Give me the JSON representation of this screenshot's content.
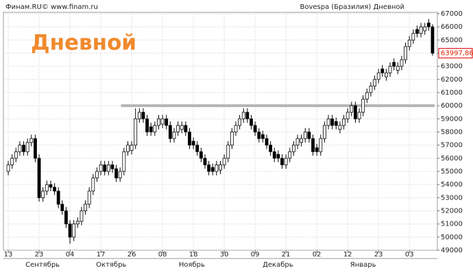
{
  "chart_data": {
    "type": "candlestick",
    "source": "Финам.RU©  www.finam.ru",
    "title": "Bovespa (Бразилия) Дневной",
    "overlay_title": "Дневной",
    "xlim": [
      -1.25,
      111.25
    ],
    "xticks": [
      {
        "value": 0,
        "label": "13"
      },
      {
        "value": 8,
        "label": "23"
      },
      {
        "value": 16,
        "label": "04"
      },
      {
        "value": 24,
        "label": "17"
      },
      {
        "value": 32,
        "label": "26"
      },
      {
        "value": 40,
        "label": "08"
      },
      {
        "value": 48,
        "label": "18"
      },
      {
        "value": 56,
        "label": "30"
      },
      {
        "value": 64,
        "label": "09"
      },
      {
        "value": 72,
        "label": "21"
      },
      {
        "value": 80,
        "label": "02"
      },
      {
        "value": 88,
        "label": "12"
      },
      {
        "value": 96,
        "label": "23"
      },
      {
        "value": 104,
        "label": "03"
      }
    ],
    "month_labels": [
      {
        "value": 8.9,
        "label": "Сентябрь"
      },
      {
        "value": 26.7,
        "label": "Октябрь"
      },
      {
        "value": 47.6,
        "label": "Ноябрь"
      },
      {
        "value": 69.9,
        "label": "Декабрь"
      },
      {
        "value": 92,
        "label": "Январь"
      }
    ],
    "ylim": [
      49000,
      67000
    ],
    "yticks": [
      49000,
      50000,
      51000,
      52000,
      53000,
      54000,
      55000,
      56000,
      57000,
      58000,
      59000,
      60000,
      61000,
      62000,
      63000,
      64000,
      65000,
      66000,
      67000
    ],
    "grid": true,
    "up_color": "#ffffff",
    "down_color": "#000000",
    "resistance_line": {
      "value": 60000,
      "start": 31,
      "end": 110,
      "color": "#b4b4b4"
    },
    "last_price_label": "63997,86",
    "open": [
      55000,
      55500,
      56000,
      56500,
      57000,
      56500,
      57200,
      57500,
      56000,
      53000,
      53500,
      54000,
      53800,
      53500,
      52500,
      52000,
      51000,
      50000,
      51000,
      51200,
      52000,
      52500,
      53500,
      54500,
      55000,
      55500,
      55000,
      55500,
      55200,
      54500,
      55000,
      56500,
      56600,
      57000,
      59000,
      59500,
      59000,
      58400,
      58000,
      58500,
      58600,
      59000,
      58500,
      57500,
      58000,
      58200,
      58500,
      58000,
      57300,
      57000,
      56500,
      56000,
      55500,
      55300,
      55000,
      55100,
      55500,
      56000,
      57000,
      58000,
      58500,
      59000,
      59500,
      59000,
      58500,
      58000,
      57800,
      57500,
      57000,
      56500,
      56300,
      56000,
      55500,
      56000,
      56500,
      57000,
      57200,
      57500,
      58000,
      57500,
      56800,
      56500,
      57500,
      58500,
      59000,
      58800,
      58200,
      58500,
      59000,
      59500,
      60000,
      59000,
      59500,
      60500,
      61000,
      61500,
      62000,
      62800,
      62200,
      62500,
      63300,
      62700,
      63000,
      63500,
      64500,
      65000,
      65800,
      65500,
      65700,
      66300,
      66000
    ],
    "high": [
      55800,
      56300,
      56800,
      57300,
      57300,
      57500,
      57800,
      57800,
      56300,
      53800,
      54300,
      54300,
      54100,
      53800,
      52800,
      52300,
      51300,
      51300,
      51500,
      52300,
      52800,
      53800,
      54800,
      55300,
      55800,
      55800,
      55800,
      55800,
      55500,
      55300,
      56800,
      57300,
      57300,
      59800,
      59800,
      59800,
      59300,
      58700,
      58800,
      59300,
      59300,
      59300,
      58800,
      58300,
      58800,
      58800,
      58800,
      58300,
      57600,
      57300,
      56800,
      56300,
      55800,
      55600,
      55800,
      55800,
      56300,
      57300,
      58300,
      58800,
      59300,
      59800,
      59800,
      59300,
      58800,
      58300,
      58100,
      57800,
      57300,
      56800,
      56600,
      56300,
      56300,
      56800,
      57300,
      57800,
      57800,
      58300,
      58300,
      57800,
      57100,
      57800,
      58800,
      59300,
      59300,
      59100,
      58800,
      59300,
      59800,
      60300,
      60300,
      59800,
      60800,
      61300,
      61800,
      62300,
      62800,
      63100,
      62800,
      63300,
      63600,
      63300,
      63800,
      64800,
      65300,
      65800,
      66100,
      66300,
      66300,
      66600,
      66200
    ],
    "low": [
      54700,
      55200,
      55700,
      56200,
      56200,
      56200,
      56900,
      55700,
      52700,
      52700,
      53200,
      53500,
      53200,
      52200,
      51700,
      50700,
      49500,
      49700,
      50700,
      50900,
      51700,
      52200,
      53200,
      54200,
      54700,
      54700,
      54700,
      54900,
      54200,
      54200,
      54700,
      56200,
      56300,
      56700,
      58700,
      58700,
      57700,
      57700,
      57700,
      58200,
      58300,
      58200,
      57200,
      57200,
      57700,
      57900,
      57700,
      56700,
      56700,
      56200,
      55700,
      55200,
      54700,
      54700,
      54700,
      54800,
      55200,
      55700,
      56700,
      57700,
      58200,
      58700,
      58700,
      58200,
      57700,
      57200,
      57200,
      56700,
      56200,
      55700,
      55700,
      55200,
      55200,
      55700,
      56200,
      56700,
      56900,
      57200,
      57200,
      56200,
      56200,
      56200,
      57200,
      58200,
      58200,
      58200,
      57900,
      58200,
      58700,
      59200,
      58700,
      58700,
      59200,
      60200,
      60700,
      61200,
      61700,
      62200,
      61900,
      62200,
      62700,
      62400,
      62700,
      63200,
      64200,
      64700,
      65200,
      65200,
      65400,
      65700,
      63800
    ],
    "close": [
      55500,
      56000,
      56500,
      57000,
      56500,
      57200,
      57500,
      56000,
      53000,
      53500,
      54000,
      53800,
      53500,
      52500,
      52000,
      51000,
      50000,
      51000,
      51200,
      52000,
      52500,
      53500,
      54500,
      55000,
      55500,
      55000,
      55500,
      55200,
      54500,
      55000,
      56500,
      57000,
      57000,
      59000,
      59500,
      59000,
      58000,
      58000,
      58500,
      59000,
      59000,
      58500,
      57500,
      58000,
      58500,
      58500,
      58000,
      57000,
      57000,
      56500,
      56000,
      55500,
      55000,
      55000,
      55500,
      55500,
      56000,
      57000,
      58000,
      58500,
      59000,
      59500,
      59000,
      58500,
      58000,
      57500,
      57500,
      57000,
      56500,
      56000,
      56000,
      55500,
      56000,
      56500,
      57000,
      57500,
      57500,
      58000,
      57500,
      56500,
      56500,
      57500,
      58500,
      59000,
      58500,
      58500,
      58500,
      59000,
      59500,
      60000,
      59000,
      59500,
      60500,
      61000,
      61500,
      62000,
      62500,
      62500,
      62500,
      63000,
      63000,
      63000,
      63500,
      64500,
      65000,
      65500,
      65500,
      66000,
      66000,
      66000,
      63997.86
    ]
  }
}
